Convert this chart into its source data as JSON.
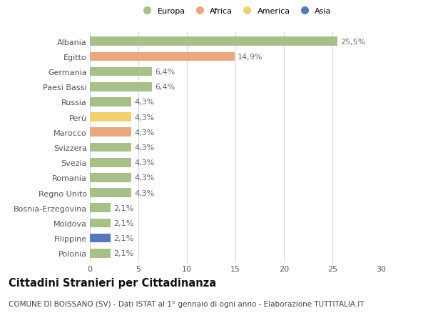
{
  "countries": [
    "Albania",
    "Egitto",
    "Germania",
    "Paesi Bassi",
    "Russia",
    "Perù",
    "Marocco",
    "Svizzera",
    "Svezia",
    "Romania",
    "Regno Unito",
    "Bosnia-Erzegovina",
    "Moldova",
    "Filippine",
    "Polonia"
  ],
  "values": [
    25.5,
    14.9,
    6.4,
    6.4,
    4.3,
    4.3,
    4.3,
    4.3,
    4.3,
    4.3,
    4.3,
    2.1,
    2.1,
    2.1,
    2.1
  ],
  "labels": [
    "25,5%",
    "14,9%",
    "6,4%",
    "6,4%",
    "4,3%",
    "4,3%",
    "4,3%",
    "4,3%",
    "4,3%",
    "4,3%",
    "4,3%",
    "2,1%",
    "2,1%",
    "2,1%",
    "2,1%"
  ],
  "continents": [
    "Europa",
    "Africa",
    "Europa",
    "Europa",
    "Europa",
    "America",
    "Africa",
    "Europa",
    "Europa",
    "Europa",
    "Europa",
    "Europa",
    "Europa",
    "Asia",
    "Europa"
  ],
  "colors": {
    "Europa": "#a8bf8a",
    "Africa": "#e8a882",
    "America": "#f0d070",
    "Asia": "#5577bb"
  },
  "legend_order": [
    "Europa",
    "Africa",
    "America",
    "Asia"
  ],
  "title": "Cittadini Stranieri per Cittadinanza",
  "subtitle": "COMUNE DI BOISSANO (SV) - Dati ISTAT al 1° gennaio di ogni anno - Elaborazione TUTTITALIA.IT",
  "xlim": [
    0,
    30
  ],
  "xticks": [
    0,
    5,
    10,
    15,
    20,
    25,
    30
  ],
  "background_color": "#ffffff",
  "grid_color": "#d8d8d8",
  "bar_height": 0.6,
  "label_fontsize": 8.0,
  "tick_fontsize": 8.0,
  "title_fontsize": 10.5,
  "subtitle_fontsize": 7.5
}
